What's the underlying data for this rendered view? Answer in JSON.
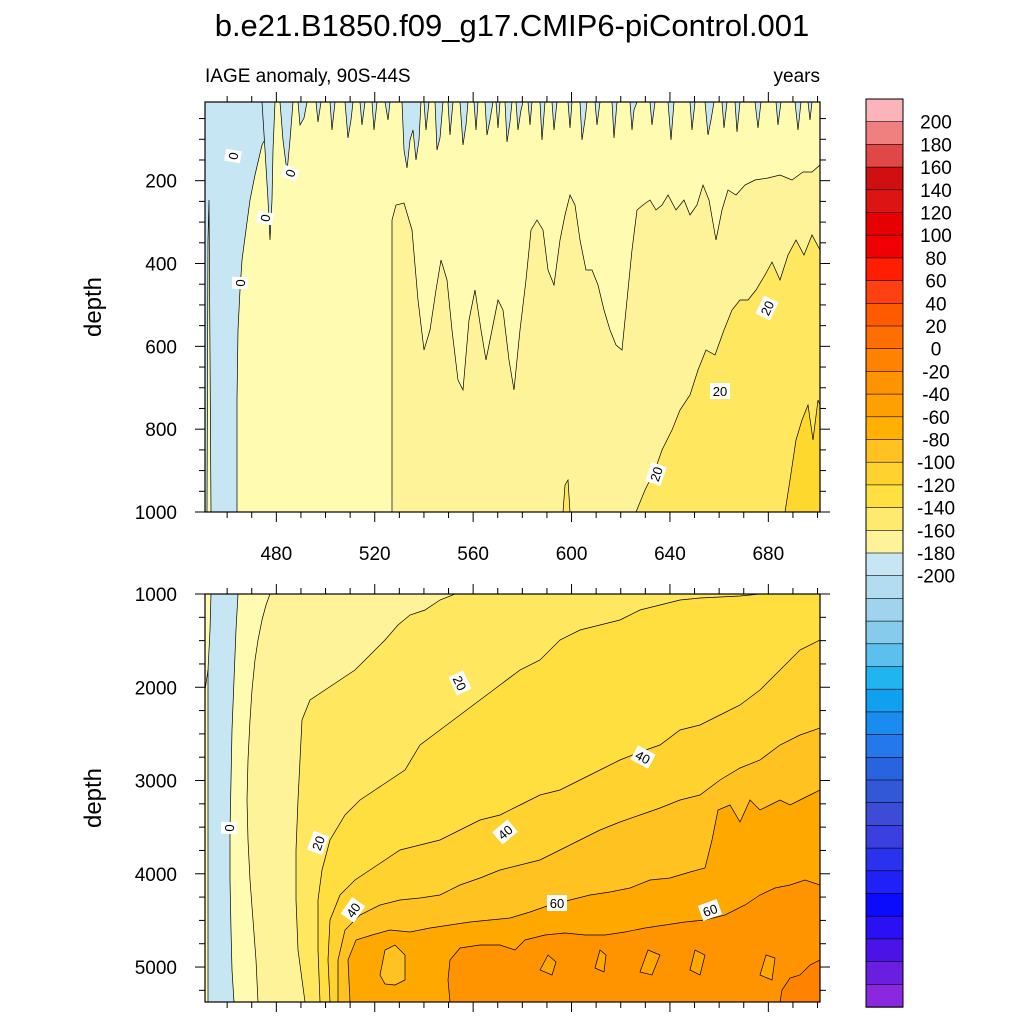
{
  "chart_data": [
    {
      "type": "heatmap",
      "panel": "top",
      "title": "b.e21.B1850.f09_g17.CMIP6-piControl.001",
      "subtitle_left": "IAGE anomaly, 90S-44S",
      "subtitle_right": "years",
      "xlabel": "",
      "ylabel": "depth",
      "xlim": [
        451,
        701
      ],
      "ylim": [
        1000,
        10
      ],
      "y_reversed": true,
      "xticks": [
        "480",
        "520",
        "560",
        "600",
        "640",
        "680"
      ],
      "yticks": [
        "200",
        "400",
        "600",
        "800",
        "1000"
      ],
      "contour_labels": [
        "0",
        "0",
        "0",
        "0",
        "20",
        "20",
        "20"
      ],
      "contour_interval": 10,
      "value_estimates": [
        {
          "x": 455,
          "depth": 500,
          "value": -5
        },
        {
          "x": 500,
          "depth": 500,
          "value": 5
        },
        {
          "x": 600,
          "depth": 700,
          "value": 15
        },
        {
          "x": 690,
          "depth": 950,
          "value": 25
        }
      ]
    },
    {
      "type": "heatmap",
      "panel": "bottom",
      "xlabel": "",
      "ylabel": "depth",
      "xlim": [
        451,
        701
      ],
      "ylim": [
        5375,
        1000
      ],
      "y_reversed": true,
      "xticks": [
        "480",
        "520",
        "560",
        "600",
        "640",
        "680"
      ],
      "yticks": [
        "1000",
        "2000",
        "3000",
        "4000",
        "5000"
      ],
      "contour_labels": [
        "0",
        "20",
        "20",
        "40",
        "40",
        "40",
        "60",
        "60"
      ],
      "contour_interval": 10,
      "value_estimates": [
        {
          "x": 455,
          "depth": 3000,
          "value": -5
        },
        {
          "x": 480,
          "depth": 3000,
          "value": 5
        },
        {
          "x": 600,
          "depth": 2500,
          "value": 30
        },
        {
          "x": 600,
          "depth": 4000,
          "value": 45
        },
        {
          "x": 690,
          "depth": 5000,
          "value": 72
        }
      ]
    }
  ],
  "colorbar": {
    "ticks": [
      "200",
      "180",
      "160",
      "140",
      "120",
      "100",
      "80",
      "60",
      "40",
      "20",
      "0",
      "-20",
      "-40",
      "-60",
      "-80",
      "-100",
      "-120",
      "-140",
      "-160",
      "-180",
      "-200"
    ],
    "colors": [
      "#fbb4b9",
      "#f08080",
      "#e04848",
      "#d01010",
      "#dc1414",
      "#e60000",
      "#f00000",
      "#ff1e00",
      "#ff4010",
      "#ff5a00",
      "#ff6e00",
      "#ff8200",
      "#ff9400",
      "#ffa000",
      "#ffb000",
      "#ffc220",
      "#ffd230",
      "#ffe040",
      "#ffea70",
      "#fff39a",
      "#c6e6f4",
      "#b4dcf0",
      "#a0d4ee",
      "#86cbec",
      "#5cc0ee",
      "#20b4f0",
      "#10a0f0",
      "#1a8cf0",
      "#2478ec",
      "#2864e0",
      "#3258d8",
      "#3c4cd6",
      "#3a40e0",
      "#2a32ee",
      "#1e22f8",
      "#0c0cfc",
      "#2a10f4",
      "#4a14e8",
      "#6a1ee0",
      "#8a28e0"
    ]
  }
}
